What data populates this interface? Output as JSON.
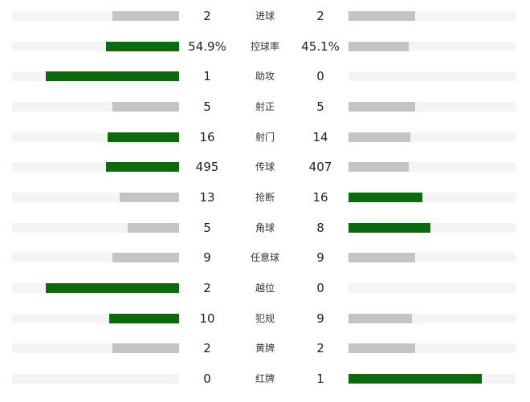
{
  "colors": {
    "leader": "#0b6b0b",
    "other": "#c4c4c4",
    "track": "#f4f4f4"
  },
  "stats": [
    {
      "label": "进球",
      "home": "2",
      "away": "2",
      "home_value": 2,
      "away_value": 2
    },
    {
      "label": "控球率",
      "home": "54.9%",
      "away": "45.1%",
      "home_value": 54.9,
      "away_value": 45.1
    },
    {
      "label": "助攻",
      "home": "1",
      "away": "0",
      "home_value": 1,
      "away_value": 0
    },
    {
      "label": "射正",
      "home": "5",
      "away": "5",
      "home_value": 5,
      "away_value": 5
    },
    {
      "label": "射门",
      "home": "16",
      "away": "14",
      "home_value": 16,
      "away_value": 14
    },
    {
      "label": "传球",
      "home": "495",
      "away": "407",
      "home_value": 495,
      "away_value": 407
    },
    {
      "label": "抢断",
      "home": "13",
      "away": "16",
      "home_value": 13,
      "away_value": 16
    },
    {
      "label": "角球",
      "home": "5",
      "away": "8",
      "home_value": 5,
      "away_value": 8
    },
    {
      "label": "任意球",
      "home": "9",
      "away": "9",
      "home_value": 9,
      "away_value": 9
    },
    {
      "label": "越位",
      "home": "2",
      "away": "0",
      "home_value": 2,
      "away_value": 0
    },
    {
      "label": "犯规",
      "home": "10",
      "away": "9",
      "home_value": 10,
      "away_value": 9
    },
    {
      "label": "黄牌",
      "home": "2",
      "away": "2",
      "home_value": 2,
      "away_value": 2
    },
    {
      "label": "红牌",
      "home": "0",
      "away": "1",
      "home_value": 0,
      "away_value": 1
    }
  ]
}
